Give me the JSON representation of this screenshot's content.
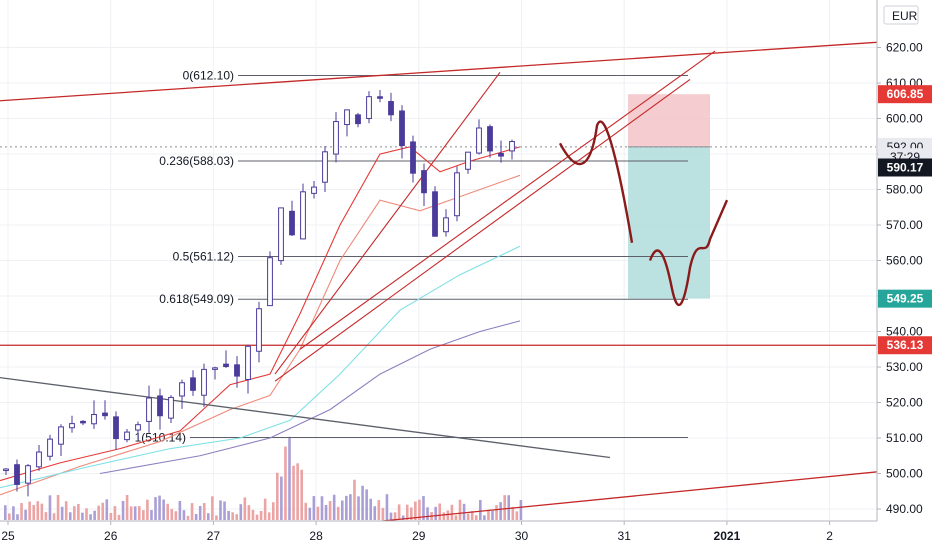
{
  "chart_data": {
    "type": "candlestick",
    "currency": "EUR",
    "y_range": [
      486,
      626
    ],
    "y_ticks": [
      "490.00",
      "500.00",
      "510.00",
      "520.00",
      "530.00",
      "540.00",
      "550.00",
      "560.00",
      "570.00",
      "580.00",
      "590.00",
      "600.00",
      "610.00",
      "620.00"
    ],
    "x_labels": [
      "25",
      "26",
      "27",
      "28",
      "29",
      "30",
      "31",
      "2021",
      "2"
    ],
    "fib_levels": [
      {
        "label": "0(612.10)",
        "value": 612.1
      },
      {
        "label": "0.236(588.03)",
        "value": 588.03
      },
      {
        "label": "0.5(561.12)",
        "value": 561.12
      },
      {
        "label": "0.618(549.09)",
        "value": 549.09
      },
      {
        "label": "1(510.14)",
        "value": 510.14
      }
    ],
    "price_badges": [
      {
        "label": "606.85",
        "value": 606.85,
        "color": "#e53935",
        "style": "filled"
      },
      {
        "label": "592.00",
        "value": 592.0,
        "color": "#d1d4dc",
        "style": "light"
      },
      {
        "label": "37:29",
        "value": 589.1,
        "color": "#d1d4dc",
        "style": "light"
      },
      {
        "label": "590.17",
        "value": 586.2,
        "color": "#131722",
        "style": "dark"
      },
      {
        "label": "549.25",
        "value": 549.25,
        "color": "#26a69a",
        "style": "filled"
      },
      {
        "label": "536.13",
        "value": 536.13,
        "color": "#e53935",
        "style": "filled"
      }
    ],
    "position": {
      "entry": 592.0,
      "target": 549.25,
      "stop": 606.85
    },
    "series_colors": {
      "candle": "#4b3b9a",
      "volume": "#e39a9a",
      "ma_fast": "#e53935",
      "ma_mid": "#ef8a7a",
      "ma_slow": "#7fe0e4",
      "ma_long": "#8e7fc0"
    }
  }
}
